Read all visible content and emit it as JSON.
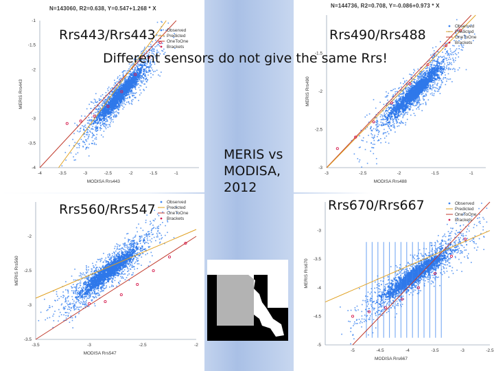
{
  "colors": {
    "observed": "#3d85f0",
    "predicted": "#e0a020",
    "one_to_one": "#c0392b",
    "brackets": "#d61c4e",
    "axis": "#9aa6b8"
  },
  "headline": "Different sensors do not give the same Rrs!",
  "note": "MERIS vs\nMODISA,\n2012",
  "map": {
    "icon": "ocean-region-map-icon"
  },
  "panels": [
    {
      "title": "Rrs443/Rrs443",
      "header": "N=143060, R2=0.638, Y=0.547+1.268 * X",
      "xlabel": "MODISA Rrs443",
      "ylabel": "MERIS Rrs443",
      "legend": [
        "Observed",
        "Predicted",
        "OneToOne",
        "Brackets"
      ]
    },
    {
      "title": "Rrs490/Rrs488",
      "header": "N=144736, R2=0.708, Y=-0.086+0.973 * X",
      "xlabel": "MODISA Rrs488",
      "ylabel": "MERIS Rrs490",
      "legend": [
        "Observed",
        "Predicted",
        "OneToOne",
        "Brackets"
      ]
    },
    {
      "title": "Rrs560/Rrs547",
      "header": "",
      "xlabel": "MODISA Rrs547",
      "ylabel": "MERIS Rrs560",
      "legend": [
        "Observed",
        "Predicted",
        "OneToOne",
        "Brackets"
      ]
    },
    {
      "title": "Rrs670/Rrs667",
      "header": "",
      "xlabel": "MODISA Rrs667",
      "ylabel": "MERIS Rrs670",
      "legend": [
        "Observed",
        "Predicted",
        "OneToOne",
        "Brackets"
      ]
    }
  ],
  "chart_data": [
    {
      "type": "scatter",
      "title": "Rrs443/Rrs443",
      "xlabel": "MODISA Rrs443",
      "ylabel": "MERIS Rrs443",
      "xlim": [
        -4,
        -0.5
      ],
      "ylim": [
        -4,
        -1
      ],
      "xticks": [
        "-4",
        "-3.5",
        "-3",
        "-2.5",
        "-2",
        "-1.5",
        "-1"
      ],
      "xtick_values": [
        -4,
        -3.5,
        -3,
        -2.5,
        -2,
        -1.5,
        -1
      ],
      "yticks": [
        "-1",
        "-1.5",
        "-2",
        "-3",
        "-3.5",
        "-4"
      ],
      "ytick_values": [
        -1,
        -1.5,
        -2,
        -3,
        -3.5,
        -4
      ],
      "stats": {
        "N": 143060,
        "R2": 0.638,
        "intercept": 0.547,
        "slope": 1.268
      },
      "predicted": {
        "intercept": 0.547,
        "slope": 1.268
      },
      "brackets": [
        [
          -3.4,
          -3.1
        ],
        [
          -3.1,
          -3.05
        ],
        [
          -2.8,
          -2.95
        ],
        [
          -2.5,
          -2.75
        ],
        [
          -2.2,
          -2.45
        ],
        [
          -1.9,
          -2.1
        ],
        [
          -1.6,
          -1.75
        ],
        [
          -1.35,
          -1.45
        ]
      ],
      "legend": [
        "Observed",
        "Predicted",
        "OneToOne",
        "Brackets"
      ]
    },
    {
      "type": "scatter",
      "title": "Rrs490/Rrs488",
      "xlabel": "MODISA Rrs488",
      "ylabel": "MERIS Rrs490",
      "xlim": [
        -3,
        -0.8
      ],
      "ylim": [
        -3,
        -1
      ],
      "xticks": [
        "-3",
        "-2.5",
        "-2",
        "-1.5",
        "-1"
      ],
      "xtick_values": [
        -3,
        -2.5,
        -2,
        -1.5,
        -1
      ],
      "yticks": [
        "-1.5",
        "-2",
        "-2.5",
        "-3"
      ],
      "ytick_values": [
        -1.5,
        -2,
        -2.5,
        -3
      ],
      "stats": {
        "N": 144736,
        "R2": 0.708,
        "intercept": -0.086,
        "slope": 0.973
      },
      "predicted": {
        "intercept": -0.086,
        "slope": 0.973
      },
      "brackets": [
        [
          -2.85,
          -2.75
        ],
        [
          -2.6,
          -2.6
        ],
        [
          -2.35,
          -2.4
        ],
        [
          -2.1,
          -2.15
        ],
        [
          -1.85,
          -1.9
        ],
        [
          -1.6,
          -1.65
        ],
        [
          -1.35,
          -1.4
        ],
        [
          -1.15,
          -1.2
        ]
      ],
      "legend": [
        "Observed",
        "Predicted",
        "OneToOne",
        "Brackets"
      ]
    },
    {
      "type": "scatter",
      "title": "Rrs560/Rrs547",
      "xlabel": "MODISA Rrs547",
      "ylabel": "MERIS Rrs560",
      "xlim": [
        -3.5,
        -2
      ],
      "ylim": [
        -3.5,
        -1.5
      ],
      "xticks": [
        "-3.5",
        "-3",
        "-2.5",
        "-2"
      ],
      "xtick_values": [
        -3.5,
        -3,
        -2.5,
        -2
      ],
      "yticks": [
        "-2",
        "-2.5",
        "-3",
        "-3.5"
      ],
      "ytick_values": [
        -2,
        -2.5,
        -3,
        -3.5
      ],
      "brackets": [
        [
          -3.0,
          -2.98
        ],
        [
          -2.85,
          -2.95
        ],
        [
          -2.7,
          -2.85
        ],
        [
          -2.55,
          -2.7
        ],
        [
          -2.4,
          -2.5
        ],
        [
          -2.25,
          -2.3
        ],
        [
          -2.1,
          -2.1
        ]
      ],
      "legend": [
        "Observed",
        "Predicted",
        "OneToOne",
        "Brackets"
      ]
    },
    {
      "type": "scatter",
      "title": "Rrs670/Rrs667",
      "xlabel": "MODISA Rrs667",
      "ylabel": "MERIS Rrs670",
      "xlim": [
        -5.5,
        -2.5
      ],
      "ylim": [
        -5,
        -2.5
      ],
      "xticks": [
        "-5",
        "-4.5",
        "-4",
        "-3.5",
        "-3",
        "-2.5"
      ],
      "xtick_values": [
        -5,
        -4.5,
        -4,
        -3.5,
        -3,
        -2.5
      ],
      "yticks": [
        "-3",
        "-3.5",
        "-4",
        "-4.5",
        "-5"
      ],
      "ytick_values": [
        -3,
        -3.5,
        -4,
        -4.5,
        -5
      ],
      "brackets": [
        [
          -5.0,
          -4.5
        ],
        [
          -4.7,
          -4.42
        ],
        [
          -4.4,
          -4.35
        ],
        [
          -4.1,
          -4.2
        ],
        [
          -3.8,
          -4.0
        ],
        [
          -3.5,
          -3.75
        ],
        [
          -3.2,
          -3.45
        ],
        [
          -2.95,
          -3.15
        ]
      ],
      "legend": [
        "Observed",
        "Predicted",
        "OneToOne",
        "Brackets"
      ]
    }
  ]
}
